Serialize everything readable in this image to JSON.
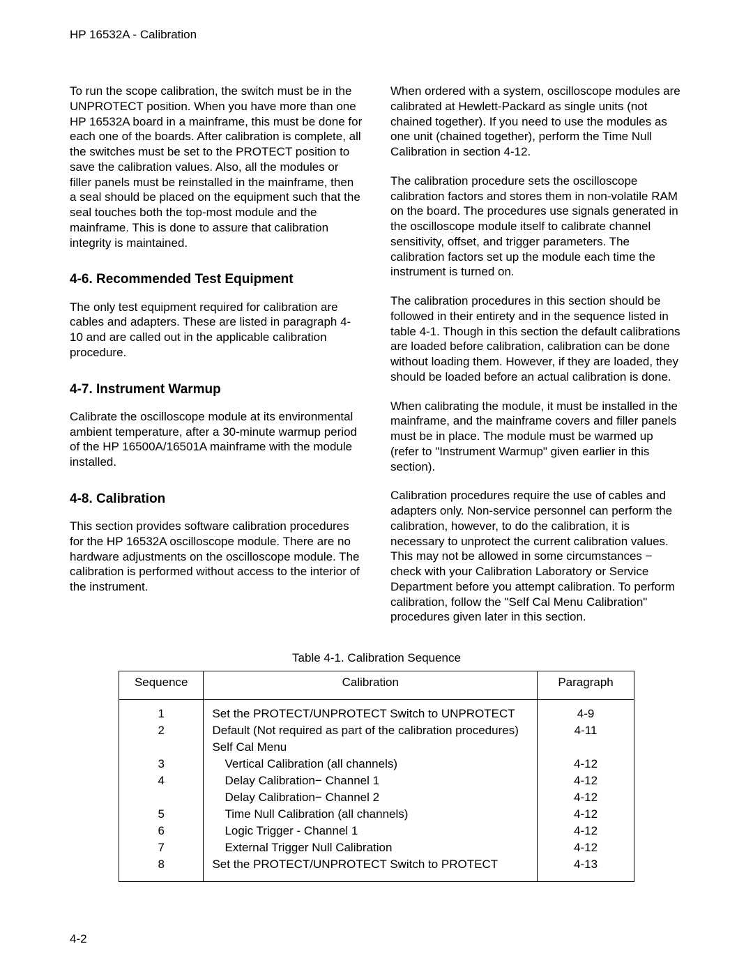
{
  "header": "HP 16532A - Calibration",
  "page_number": "4-2",
  "left": {
    "p1": "To run the scope calibration, the switch must be in the UNPROTECT position.  When you have more than one HP 16532A board in a mainframe, this must be done for each one of the boards.  After calibration is complete, all the switches must be set to the PROTECT position to save the calibration values.  Also, all the modules or filler panels must be reinstalled in the mainframe, then a seal should be placed on the equipment such that the seal touches both the top-most module and the mainframe.  This is done to assure that calibration integrity is maintained.",
    "h46": "4-6.  Recommended Test Equipment",
    "p46": "The only test equipment required for calibration are cables and adapters.  These are listed in paragraph 4-10 and are called out in the applicable calibration procedure.",
    "h47": "4-7.  Instrument Warmup",
    "p47": "Calibrate the oscilloscope module at its environmental ambient temperature, after a 30-minute warmup period of the HP 16500A/16501A mainframe with the module installed.",
    "h48": "4-8.  Calibration",
    "p48": "This section provides software calibration procedures for the HP 16532A oscilloscope module.  There are no hardware adjustments on the oscilloscope module.  The calibration is performed without access to the interior of the instrument."
  },
  "right": {
    "p1": "When ordered with a system, oscilloscope modules are calibrated at Hewlett-Packard as single units (not chained together).  If you need to use the modules as one unit (chained together), perform the Time Null Calibration in section 4-12.",
    "p2": "The calibration procedure sets the oscilloscope calibration factors and stores them in non-volatile RAM on the board.  The procedures use signals generated in the oscilloscope module itself to calibrate channel sensitivity, offset, and trigger parameters.  The calibration factors set up the module each time the instrument is turned on.",
    "p3": "The calibration procedures in this section should be followed in their entirety and in the sequence listed in table 4-1.  Though in this section the default calibrations are loaded before calibration, calibration can be done without loading them.  However, if they are loaded, they should be loaded before an actual calibration is done.",
    "p4": "When calibrating the module, it must be installed in the mainframe, and the mainframe covers and filler panels must be in place.  The module must be warmed up (refer to \"Instrument Warmup\" given earlier in this section).",
    "p5": "Calibration procedures require the use of cables and adapters only.  Non-service personnel can perform the calibration, however, to do the calibration, it is necessary to unprotect the current calibration values.  This may not be allowed in some circumstances −  check with your Calibration Laboratory or Service Department before you attempt calibration.  To perform calibration, follow the \"Self Cal Menu Calibration\" procedures given later in this section."
  },
  "table": {
    "caption": "Table 4-1.  Calibration Sequence",
    "columns": {
      "seq": "Sequence",
      "cal": "Calibration",
      "par": "Paragraph"
    },
    "rows": [
      {
        "seq": "1",
        "cal": "Set the PROTECT/UNPROTECT Switch to UNPROTECT",
        "par": "4-9",
        "indent": 0
      },
      {
        "seq": "2",
        "cal": "Default (Not required as part of the calibration procedures)",
        "par": "4-11",
        "indent": 0
      },
      {
        "seq": "",
        "cal": "Self Cal Menu",
        "par": "",
        "indent": 0
      },
      {
        "seq": "3",
        "cal": "Vertical Calibration (all channels)",
        "par": "4-12",
        "indent": 1
      },
      {
        "seq": "4",
        "cal": "Delay Calibration− Channel 1",
        "par": "4-12",
        "indent": 1
      },
      {
        "seq": "",
        "cal": "Delay Calibration− Channel 2",
        "par": "4-12",
        "indent": 1
      },
      {
        "seq": "5",
        "cal": "Time Null Calibration (all channels)",
        "par": "4-12",
        "indent": 1
      },
      {
        "seq": "6",
        "cal": "Logic Trigger - Channel 1",
        "par": "4-12",
        "indent": 1
      },
      {
        "seq": "7",
        "cal": "External Trigger Null Calibration",
        "par": "4-12",
        "indent": 1
      },
      {
        "seq": "8",
        "cal": "Set the PROTECT/UNPROTECT Switch to PROTECT",
        "par": "4-13",
        "indent": 0
      }
    ]
  }
}
